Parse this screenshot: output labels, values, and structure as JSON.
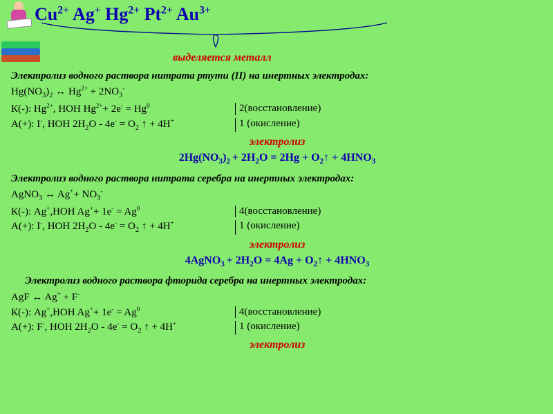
{
  "colors": {
    "background": "#86ea6f",
    "heading_blue": "#0e00ae",
    "accent_red": "#cf0000",
    "text": "#000000",
    "book1": "#c94f2a",
    "book2": "#2a6fc9",
    "book3": "#2ac95e",
    "head": "#f6c9a0",
    "dress": "#d447a3"
  },
  "ions_html": "Cu<sup>2+</sup> Ag<sup>+</sup> Hg<sup>2+</sup>  Pt<sup>2+</sup> Au<sup>3+</sup>",
  "title_metal": "выделяется металл",
  "sec1": {
    "desc": "Электролиз водного раствора нитрата ртути (II) на инертных электродах:",
    "diss_html": "Hg(NO<sub>3</sub>)<sub>2</sub> ↔ Hg<sup>2+</sup> + 2NO<sub>3</sub><sup>-</sup>",
    "k_left_html": "К(-): Hg<sup>2+</sup>, HOH   Hg<sup>2+</sup>+ 2e<sup>-</sup> =  Hg<sup>0</sup>",
    "k_right": "2(восстановление)",
    "a_left_html": "А(+): I<sup>-</sup>,  HOH     2H<sub>2</sub>O - 4e<sup>-</sup> = O<sub>2</sub> ↑ + 4H<sup>+</sup>",
    "a_right": "1 (окисление)",
    "label": "электролиз",
    "eq_html": "2Hg(NO<sub>3</sub>)<sub>2 </sub>+ 2H<sub>2</sub>O = 2Hg + O<sub>2</sub>↑ + 4HNO<sub>3</sub>"
  },
  "sec2": {
    "desc": "Электролиз водного раствора нитрата  серебра на инертных электродах:",
    "diss_html": "AgNO<sub>3</sub> ↔ Ag<sup>+</sup>+ NO<sub>3</sub><sup>-</sup>",
    "k_left_html": "К(-):  Ag<sup>+</sup>,HOH   Ag<sup>+</sup>+ 1e<sup>-</sup> =  Ag<sup>0</sup>",
    "k_right": "4(восстановление)",
    "a_left_html": "А(+): I<sup>-</sup>,  HOH     2H<sub>2</sub>O - 4e<sup>-</sup> = O<sub>2</sub> ↑ + 4H<sup>+</sup>",
    "a_right": "1 (окисление)",
    "label": "электролиз",
    "eq_html": "4AgNO<sub>3 </sub>+ 2H<sub>2</sub>O = 4Ag + O<sub>2</sub>↑ + 4HNO<sub>3</sub>"
  },
  "sec3": {
    "desc": "Электролиз водного раствора фторида  серебра на инертных электродах:",
    "diss_html": "AgF ↔ Ag<sup>+</sup> + F<sup>-</sup>",
    "k_left_html": "К(-):  Ag<sup>+</sup>,HOH   Ag<sup>+</sup>+ 1e<sup>-</sup> =  Ag<sup>0</sup>",
    "k_right": "4(восстановление)",
    "a_left_html": "А(+): F<sup>-</sup>,  HOH     2H<sub>2</sub>O - 4e<sup>-</sup> = O<sub>2</sub> ↑ + 4H<sup>+</sup>",
    "a_right": "1 (окисление)",
    "label": "электролиз"
  }
}
